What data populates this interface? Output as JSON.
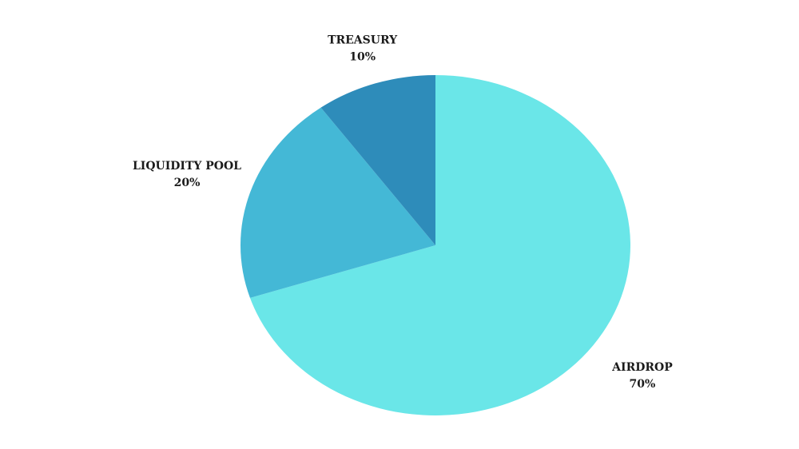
{
  "chart_data": {
    "type": "pie",
    "categories": [
      "AIRDROP",
      "LIQUIDITY POOL",
      "TREASURY"
    ],
    "values": [
      70,
      20,
      10
    ],
    "value_labels": [
      "70%",
      "20%",
      "10%"
    ],
    "colors": [
      "#6ae6e8",
      "#44b8d6",
      "#2e8cba"
    ]
  }
}
